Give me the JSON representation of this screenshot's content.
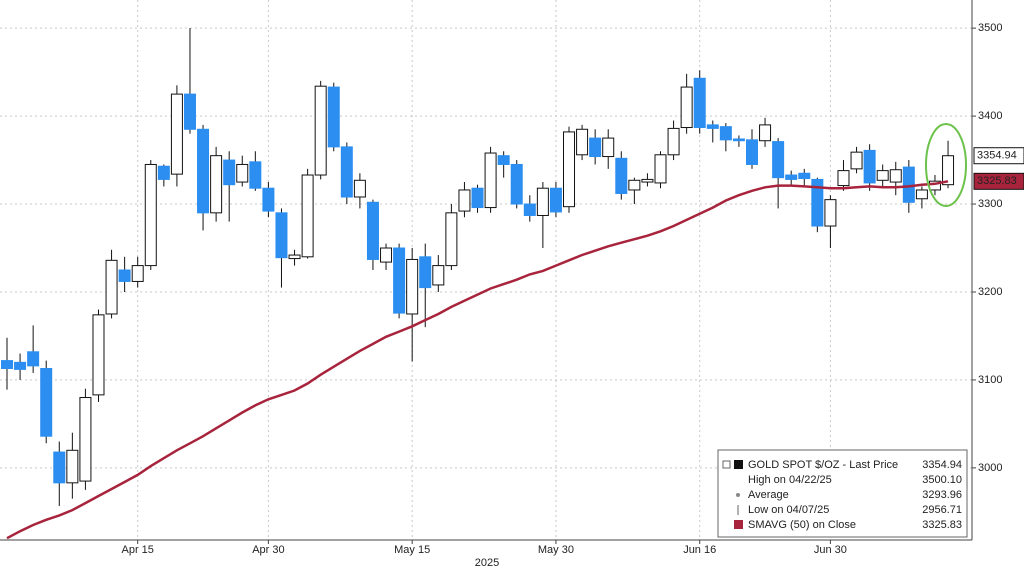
{
  "chart_data": {
    "type": "candlestick",
    "xlabel": "2025",
    "categories": [
      null,
      null,
      null,
      null,
      null,
      null,
      null,
      null,
      null,
      null,
      "Apr 15",
      null,
      null,
      null,
      null,
      null,
      null,
      null,
      null,
      null,
      "Apr 30",
      null,
      null,
      null,
      null,
      null,
      null,
      null,
      null,
      null,
      null,
      "May 15",
      null,
      null,
      null,
      null,
      null,
      null,
      null,
      null,
      null,
      null,
      "May 30",
      null,
      null,
      null,
      null,
      null,
      null,
      null,
      null,
      null,
      null,
      "Jun 16",
      null,
      null,
      null,
      null,
      null,
      null,
      null,
      null,
      null,
      "Jun 30",
      null,
      null,
      null,
      null,
      null,
      null,
      null,
      null,
      null
    ],
    "open": [
      3122,
      3120,
      3132,
      3113,
      3018,
      2983,
      2985,
      3083,
      3175,
      3225,
      3212,
      3230,
      3343,
      3334,
      3425,
      3385,
      3290,
      3350,
      3325,
      3348,
      3318,
      3290,
      3238,
      3240,
      3333,
      3433,
      3365,
      3308,
      3302,
      3234,
      3250,
      3175,
      3240,
      3208,
      3230,
      3292,
      3318,
      3296,
      3355,
      3345,
      3300,
      3287,
      3318,
      3297,
      3356,
      3375,
      3354,
      3352,
      3316,
      3325,
      3324,
      3356,
      3387,
      3443,
      3390,
      3388,
      3374,
      3373,
      3372,
      3371,
      3333,
      3335,
      3328,
      3275,
      3321,
      3340,
      3361,
      3327,
      3325,
      3342,
      3306,
      3316,
      3322
    ],
    "high": [
      3148,
      3130,
      3162,
      3122,
      3030,
      3040,
      3090,
      3180,
      3248,
      3240,
      3240,
      3350,
      3345,
      3435,
      3500.1,
      3390,
      3365,
      3360,
      3355,
      3360,
      3325,
      3295,
      3248,
      3340,
      3440,
      3438,
      3370,
      3335,
      3305,
      3255,
      3255,
      3250,
      3255,
      3242,
      3300,
      3325,
      3322,
      3365,
      3360,
      3350,
      3310,
      3325,
      3325,
      3388,
      3390,
      3385,
      3385,
      3360,
      3330,
      3335,
      3360,
      3395,
      3448,
      3452,
      3395,
      3392,
      3378,
      3385,
      3398,
      3375,
      3338,
      3340,
      3330,
      3310,
      3350,
      3365,
      3368,
      3345,
      3348,
      3350,
      3320,
      3333,
      3372
    ],
    "low": [
      3089,
      3100,
      3108,
      3028,
      2956.71,
      2965,
      2975,
      3075,
      3170,
      3200,
      3205,
      3225,
      3320,
      3320,
      3380,
      3270,
      3280,
      3280,
      3320,
      3315,
      3285,
      3205,
      3230,
      3238,
      3328,
      3360,
      3300,
      3295,
      3225,
      3225,
      3170,
      3121,
      3160,
      3200,
      3225,
      3285,
      3290,
      3290,
      3330,
      3295,
      3280,
      3250,
      3285,
      3290,
      3350,
      3345,
      3340,
      3305,
      3300,
      3320,
      3318,
      3350,
      3380,
      3380,
      3370,
      3360,
      3365,
      3340,
      3365,
      3295,
      3320,
      3320,
      3268,
      3250,
      3315,
      3335,
      3315,
      3320,
      3310,
      3290,
      3295,
      3310,
      3318
    ],
    "close": [
      3113,
      3112,
      3116,
      3036,
      2983,
      3020,
      3080,
      3174,
      3236,
      3212,
      3230,
      3345,
      3328,
      3425,
      3385,
      3290,
      3355,
      3322,
      3345,
      3318,
      3292,
      3239,
      3242,
      3333,
      3434,
      3365,
      3308,
      3327,
      3237,
      3250,
      3176,
      3237,
      3205,
      3230,
      3290,
      3316,
      3296,
      3358,
      3345,
      3300,
      3287,
      3318,
      3291,
      3382,
      3385,
      3354,
      3375,
      3312,
      3327,
      3328,
      3356,
      3386,
      3433,
      3387,
      3386,
      3373,
      3372,
      3345,
      3390,
      3330,
      3328,
      3329,
      3275,
      3305,
      3338,
      3359,
      3324,
      3338,
      3339,
      3302,
      3316,
      3326,
      3354.94
    ],
    "up_color": "#ffffff",
    "down_color": "#2b8ef0",
    "sma": {
      "name": "SMAVG (50)  on Close",
      "color": "#a8243c",
      "values": [
        2920,
        2928,
        2935,
        2941,
        2946,
        2952,
        2960,
        2968,
        2976,
        2984,
        2992,
        3002,
        3011,
        3020,
        3028,
        3036,
        3045,
        3054,
        3063,
        3071,
        3078,
        3083,
        3088,
        3096,
        3106,
        3115,
        3124,
        3133,
        3141,
        3149,
        3155,
        3161,
        3168,
        3175,
        3183,
        3190,
        3197,
        3204,
        3209,
        3214,
        3220,
        3224,
        3230,
        3236,
        3242,
        3247,
        3252,
        3256,
        3260,
        3264,
        3269,
        3275,
        3282,
        3289,
        3296,
        3304,
        3310,
        3315,
        3319,
        3321,
        3321,
        3320,
        3319,
        3318,
        3318,
        3319,
        3320,
        3319,
        3319,
        3320,
        3322,
        3323,
        3325.83
      ]
    },
    "ylim": [
      2918,
      3532
    ],
    "yticks": [
      3000,
      3100,
      3200,
      3300,
      3400,
      3500
    ],
    "grid": true,
    "legend": [
      {
        "name": "GOLD SPOT $/OZ - Last Price",
        "value": "3354.94"
      },
      {
        "name": "High on 04/22/25",
        "value": "3500.10"
      },
      {
        "name": "Average",
        "value": "3293.96"
      },
      {
        "name": "Low on 04/07/25",
        "value": "2956.71"
      },
      {
        "name": "SMAVG (50)  on Close",
        "value": "3325.83"
      }
    ]
  }
}
